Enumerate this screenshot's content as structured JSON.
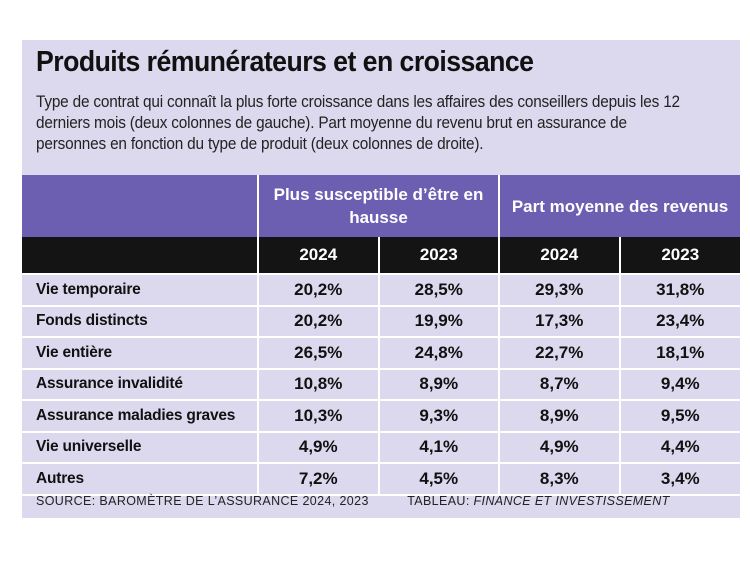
{
  "title": "Produits rémunérateurs et en croissance",
  "subtitle": "Type de contrat qui connaît la plus forte croissance dans les affaires des conseillers depuis les 12 derniers mois (deux colonnes de gauche). Part moyenne du revenu brut en assurance de personnes en fonction du type de produit (deux colonnes de droite).",
  "groups": [
    "Plus susceptible d’être en hausse",
    "Part moyenne des revenus"
  ],
  "years": [
    "2024",
    "2023",
    "2024",
    "2023"
  ],
  "rows": [
    {
      "label": "Vie temporaire",
      "values": [
        "20,2%",
        "28,5%",
        "29,3%",
        "31,8%"
      ]
    },
    {
      "label": "Fonds distincts",
      "values": [
        "20,2%",
        "19,9%",
        "17,3%",
        "23,4%"
      ]
    },
    {
      "label": "Vie entière",
      "values": [
        "26,5%",
        "24,8%",
        "22,7%",
        "18,1%"
      ]
    },
    {
      "label": "Assurance invalidité",
      "values": [
        "10,8%",
        "8,9%",
        "8,7%",
        "9,4%"
      ]
    },
    {
      "label": "Assurance maladies graves",
      "values": [
        "10,3%",
        "9,3%",
        "8,9%",
        "9,5%"
      ]
    },
    {
      "label": "Vie universelle",
      "values": [
        "4,9%",
        "4,1%",
        "4,9%",
        "4,4%"
      ]
    },
    {
      "label": "Autres",
      "values": [
        "7,2%",
        "4,5%",
        "8,3%",
        "3,4%"
      ]
    }
  ],
  "source": {
    "label": "SOURCE: BAROMÈTRE DE L’ASSURANCE 2024, 2023",
    "credit_prefix": "TABLEAU: ",
    "credit_name": "FINANCE ET INVESTISSEMENT"
  },
  "colors": {
    "panel_background": "#dcd9ee",
    "group_header": "#6c5eb1",
    "year_header": "#141414"
  }
}
